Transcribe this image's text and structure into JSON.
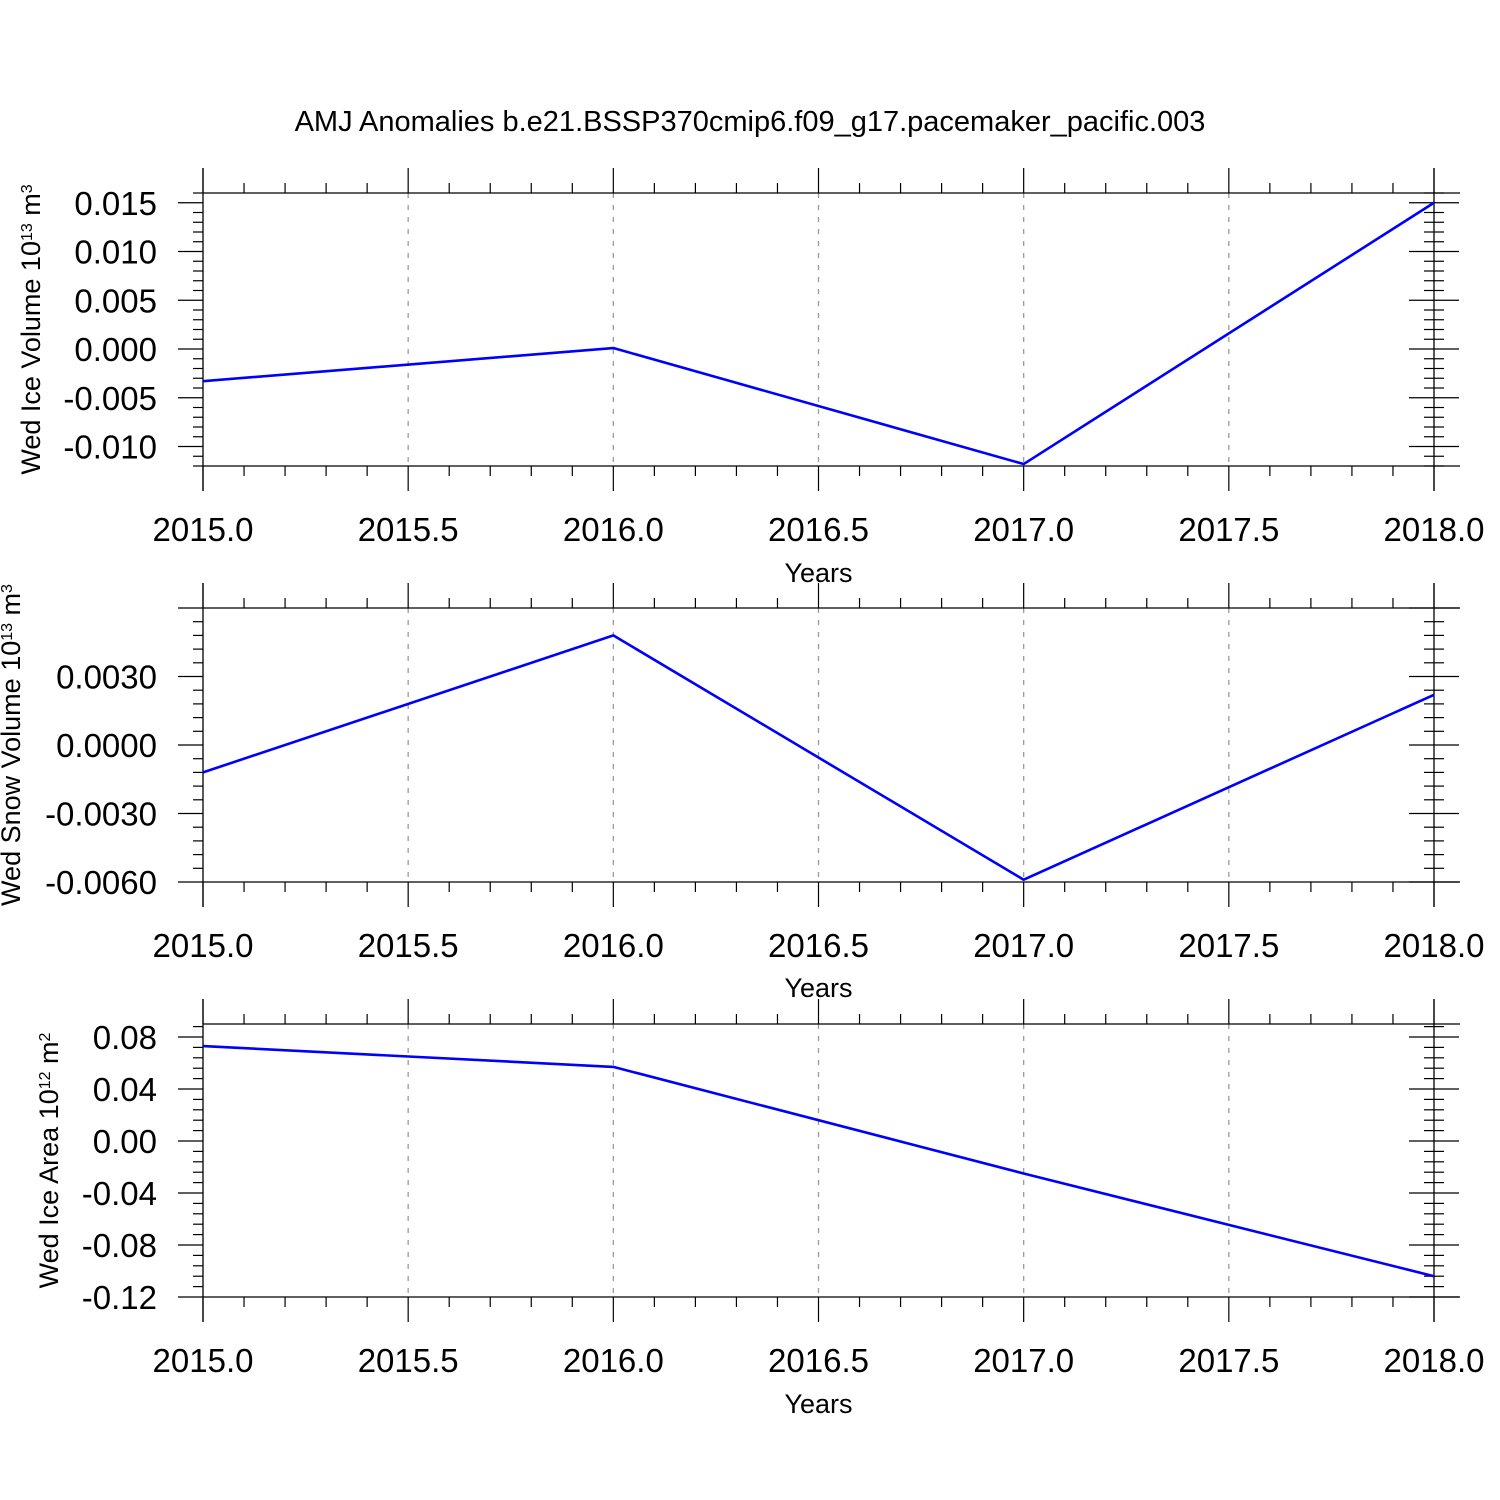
{
  "title": "AMJ Anomalies b.e21.BSSP370cmip6.f09_g17.pacemaker_pacific.003",
  "colors": {
    "series": "#0000ff",
    "axes": "#000000",
    "grid": "#9a9a9a"
  },
  "chart_data": [
    {
      "type": "line",
      "xlabel": "Years",
      "ylabel": "Wed Ice Volume 10",
      "ylabel_exponent": "13",
      "ylabel_unit": "m",
      "ylabel_unit_exponent": "3",
      "xlim": [
        2015.0,
        2018.0
      ],
      "ylim": [
        -0.012,
        0.016
      ],
      "xticks": [
        "2015.0",
        "2015.5",
        "2016.0",
        "2016.5",
        "2017.0",
        "2017.5",
        "2018.0"
      ],
      "yticks": [
        "0.015",
        "0.010",
        "0.005",
        "0.000",
        "-0.005",
        "-0.010"
      ],
      "grid": "vertical dashed",
      "x": [
        2015,
        2016,
        2017,
        2018
      ],
      "y": [
        -0.0033,
        0.0001,
        -0.0118,
        0.015
      ]
    },
    {
      "type": "line",
      "xlabel": "Years",
      "ylabel": "Wed Snow Volume 10",
      "ylabel_exponent": "13",
      "ylabel_unit": "m",
      "ylabel_unit_exponent": "3",
      "xlim": [
        2015.0,
        2018.0
      ],
      "ylim": [
        -0.006,
        0.006
      ],
      "xticks": [
        "2015.0",
        "2015.5",
        "2016.0",
        "2016.5",
        "2017.0",
        "2017.5",
        "2018.0"
      ],
      "yticks": [
        "0.0030",
        "0.0000",
        "-0.0030",
        "-0.0060"
      ],
      "grid": "vertical dashed",
      "x": [
        2015,
        2016,
        2017,
        2018
      ],
      "y": [
        -0.0012,
        0.0048,
        -0.0059,
        0.0022
      ]
    },
    {
      "type": "line",
      "xlabel": "Years",
      "ylabel": "Wed Ice Area 10",
      "ylabel_exponent": "12",
      "ylabel_unit": "m",
      "ylabel_unit_exponent": "2",
      "xlim": [
        2015.0,
        2018.0
      ],
      "ylim": [
        -0.12,
        0.09
      ],
      "xticks": [
        "2015.0",
        "2015.5",
        "2016.0",
        "2016.5",
        "2017.0",
        "2017.5",
        "2018.0"
      ],
      "yticks": [
        "0.08",
        "0.04",
        "0.00",
        "-0.04",
        "-0.08",
        "-0.12"
      ],
      "grid": "vertical dashed",
      "x": [
        2015,
        2016,
        2017,
        2018
      ],
      "y": [
        0.073,
        0.057,
        -0.025,
        -0.104
      ]
    }
  ]
}
